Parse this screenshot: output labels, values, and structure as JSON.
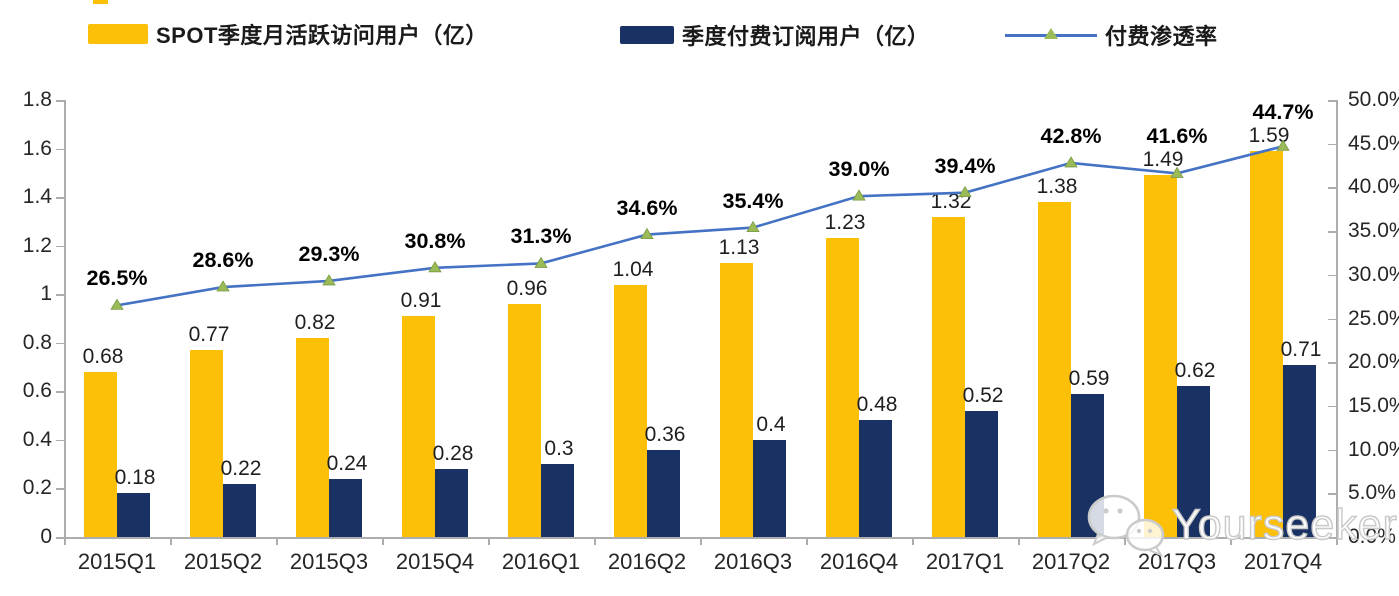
{
  "legend": {
    "items": [
      {
        "label": "SPOT季度月活跃访问用户（亿）",
        "swatch": "yellow-bar-swatch"
      },
      {
        "label": "季度付费订阅用户（亿）",
        "swatch": "navy-bar-swatch"
      },
      {
        "label": "付费渗透率",
        "swatch": "line-triangle-marker-swatch"
      }
    ]
  },
  "chart_data": {
    "type": "bar",
    "subtype": "combo-bar-line-dual-axis",
    "categories": [
      "2015Q1",
      "2015Q2",
      "2015Q3",
      "2015Q4",
      "2016Q1",
      "2016Q2",
      "2016Q3",
      "2016Q4",
      "2017Q1",
      "2017Q2",
      "2017Q3",
      "2017Q4"
    ],
    "series": [
      {
        "name": "SPOT季度月活跃访问用户（亿）",
        "type": "bar",
        "axis": "left",
        "color": "#FCC008",
        "values": [
          0.68,
          0.77,
          0.82,
          0.91,
          0.96,
          1.04,
          1.13,
          1.23,
          1.32,
          1.38,
          1.49,
          1.59
        ],
        "labels": [
          "0.68",
          "0.77",
          "0.82",
          "0.91",
          "0.96",
          "1.04",
          "1.13",
          "1.23",
          "1.32",
          "1.38",
          "1.49",
          "1.59"
        ]
      },
      {
        "name": "季度付费订阅用户（亿）",
        "type": "bar",
        "axis": "left",
        "color": "#1A3263",
        "values": [
          0.18,
          0.22,
          0.24,
          0.28,
          0.3,
          0.36,
          0.4,
          0.48,
          0.52,
          0.59,
          0.62,
          0.71
        ],
        "labels": [
          "0.18",
          "0.22",
          "0.24",
          "0.28",
          "0.3",
          "0.36",
          "0.4",
          "0.48",
          "0.52",
          "0.59",
          "0.62",
          "0.71"
        ]
      },
      {
        "name": "付费渗透率",
        "type": "line",
        "axis": "right",
        "color": "#4472C4",
        "marker": "triangle",
        "marker_color": "#9BBB59",
        "values": [
          26.5,
          28.6,
          29.3,
          30.8,
          31.3,
          34.6,
          35.4,
          39.0,
          39.4,
          42.8,
          41.6,
          44.7
        ],
        "labels": [
          "26.5%",
          "28.6%",
          "29.3%",
          "30.8%",
          "31.3%",
          "34.6%",
          "35.4%",
          "39.0%",
          "39.4%",
          "42.8%",
          "41.6%",
          "44.7%"
        ]
      }
    ],
    "left_axis": {
      "min": 0,
      "max": 1.8,
      "step": 0.2,
      "ticks": [
        "0",
        "0.2",
        "0.4",
        "0.6",
        "0.8",
        "1",
        "1.2",
        "1.4",
        "1.6",
        "1.8"
      ]
    },
    "right_axis": {
      "min": 0,
      "max": 50,
      "step": 5,
      "ticks": [
        "0.0%",
        "5.0%",
        "10.0%",
        "15.0%",
        "20.0%",
        "25.0%",
        "30.0%",
        "35.0%",
        "40.0%",
        "45.0%",
        "50.0%"
      ]
    },
    "grid": false,
    "legend_position": "top",
    "title": "",
    "xlabel": "",
    "ylabel": ""
  },
  "watermark": {
    "text": "Yourseeker",
    "icon": "wechat-bubbles-icon"
  },
  "colors": {
    "mau_bar": "#FCC008",
    "subs_bar": "#1A3263",
    "penetration_line": "#4472C4",
    "marker_green": "#9BBB59",
    "axis_gray": "#ADADAD",
    "text_dark": "#262626"
  }
}
